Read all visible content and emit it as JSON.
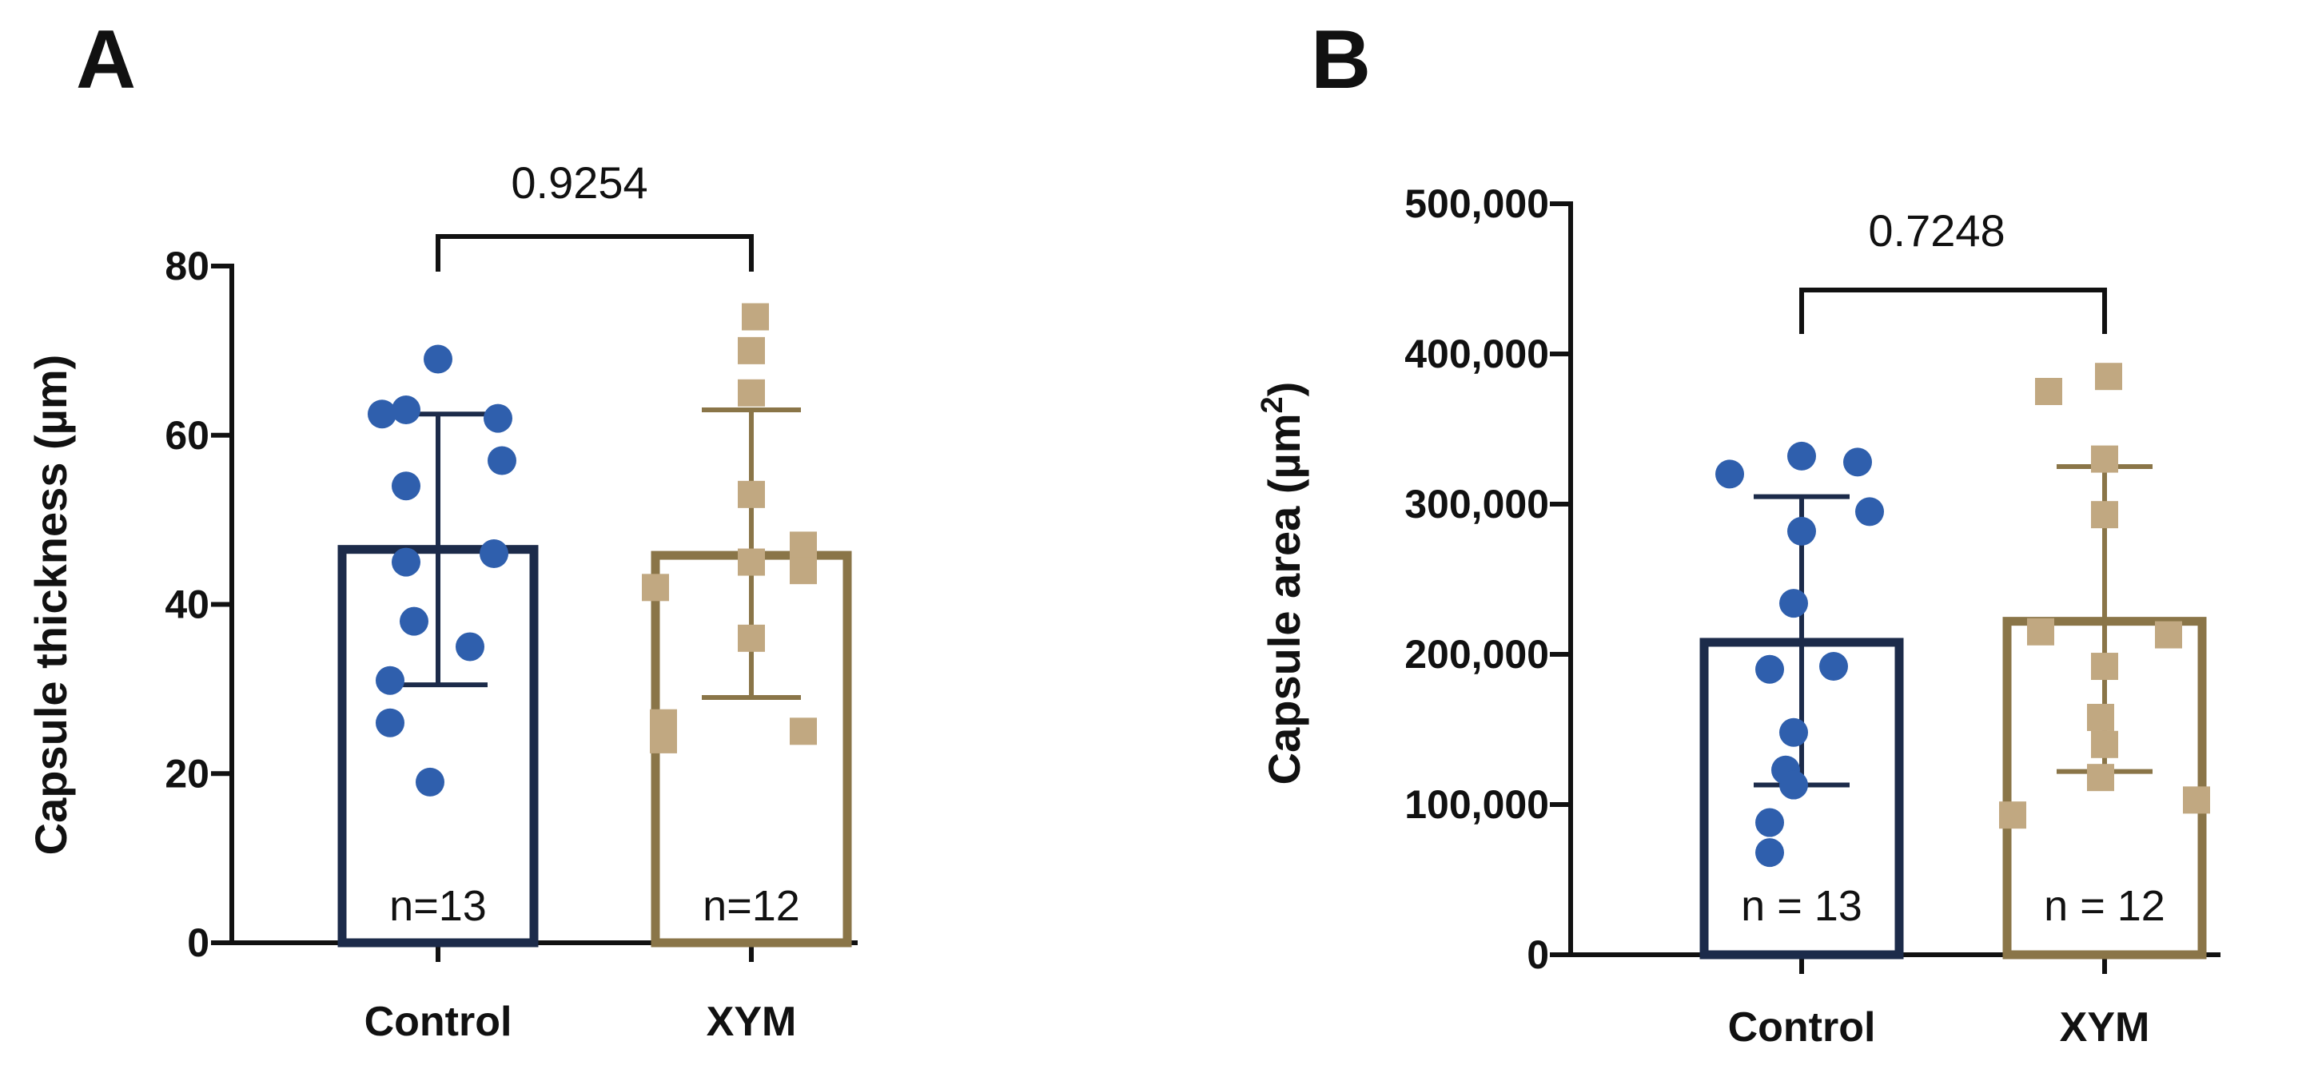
{
  "chart_data": [
    {
      "panel": "A",
      "type": "bar",
      "ylabel": "Capsule thickness (µm)",
      "ylim": [
        0,
        80
      ],
      "yticks": [
        0,
        20,
        40,
        60,
        80
      ],
      "ytick_labels": [
        "0",
        "20",
        "40",
        "60",
        "80"
      ],
      "categories": [
        "Control",
        "XYM"
      ],
      "series": [
        {
          "name": "Control",
          "mean": 46.5,
          "sd_low": 30.5,
          "sd_high": 62.5,
          "n_label": "n=13",
          "color": "#1c2b4a",
          "point_color": "#2f5fad",
          "marker": "circle",
          "points": [
            69,
            63,
            62.5,
            62,
            57,
            54,
            46,
            45,
            38,
            35,
            31,
            26,
            19
          ]
        },
        {
          "name": "XYM",
          "mean": 45.8,
          "sd_low": 29,
          "sd_high": 63,
          "n_label": "n=12",
          "color": "#8a7548",
          "point_color": "#c1a881",
          "marker": "square",
          "points": [
            74,
            70,
            65,
            53,
            47,
            45,
            44,
            42,
            36,
            26,
            25,
            24
          ]
        }
      ],
      "comparison": {
        "label": "0.9254",
        "y": 80
      }
    },
    {
      "panel": "B",
      "type": "bar",
      "ylabel": "Capsule area (µm",
      "ylabel_sup": "2",
      "ylabel_end": ")",
      "ylim": [
        0,
        500000
      ],
      "yticks": [
        0,
        100000,
        200000,
        300000,
        400000,
        500000
      ],
      "ytick_labels": [
        "0",
        "100,000",
        "200,000",
        "300,000",
        "400,000",
        "500,000"
      ],
      "categories": [
        "Control",
        "XYM"
      ],
      "series": [
        {
          "name": "Control",
          "mean": 208000,
          "sd_low": 113000,
          "sd_high": 305000,
          "n_label": "n = 13",
          "color": "#1c2b4a",
          "point_color": "#2f5fad",
          "marker": "circle",
          "points": [
            332000,
            328000,
            320000,
            295000,
            282000,
            234000,
            192000,
            190000,
            148000,
            123000,
            113000,
            88000,
            68000
          ]
        },
        {
          "name": "XYM",
          "mean": 222000,
          "sd_low": 122000,
          "sd_high": 325000,
          "n_label": "n = 12",
          "color": "#8a7548",
          "point_color": "#c1a881",
          "marker": "square",
          "points": [
            385000,
            375000,
            330000,
            293000,
            215000,
            213000,
            192000,
            158000,
            140000,
            118000,
            103000,
            93000
          ]
        }
      ],
      "comparison": {
        "label": "0.7248",
        "y": 445000
      }
    }
  ]
}
